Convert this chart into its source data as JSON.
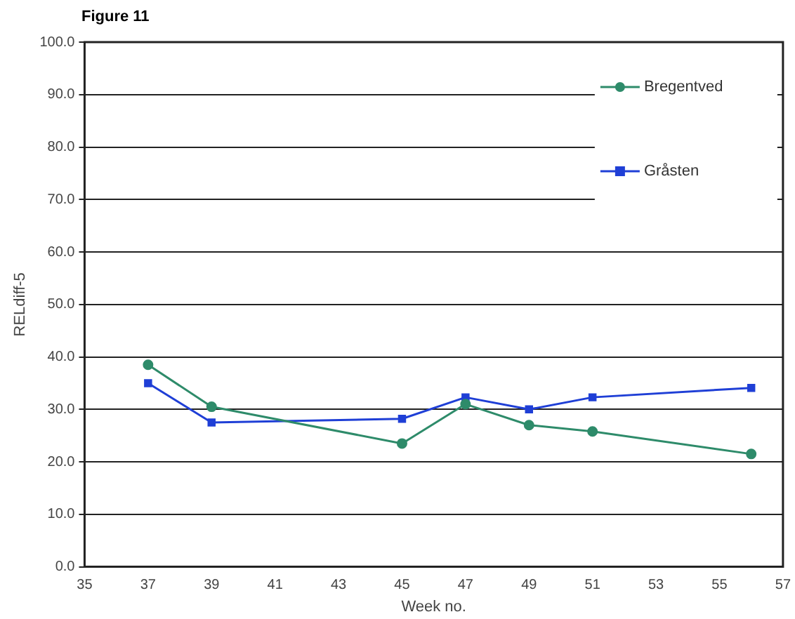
{
  "chart_data": {
    "type": "line",
    "title": "Figure 11",
    "xlabel": "Week no.",
    "ylabel": "RELdiff-5",
    "x": [
      37,
      39,
      45,
      47,
      49,
      51,
      56
    ],
    "series": [
      {
        "name": "Bregentved",
        "color": "#2e8b6a",
        "values": [
          38.5,
          30.5,
          23.5,
          31,
          27,
          25.8,
          21.5
        ],
        "marker": "circle"
      },
      {
        "name": "Gråsten",
        "color": "#1f3fd6",
        "values": [
          35,
          27.5,
          28.2,
          32.3,
          30,
          32.3,
          34.1
        ],
        "marker": "square"
      }
    ],
    "xlim": [
      35,
      57
    ],
    "xticks": [
      35,
      37,
      39,
      41,
      43,
      45,
      47,
      49,
      51,
      53,
      55,
      57
    ],
    "ylim": [
      0,
      100
    ],
    "yticks": [
      {
        "value": 0,
        "label": "0.0"
      },
      {
        "value": 10,
        "label": "10.0"
      },
      {
        "value": 20,
        "label": "20.0"
      },
      {
        "value": 30,
        "label": "30.0"
      },
      {
        "value": 40,
        "label": "40.0"
      },
      {
        "value": 50,
        "label": "50.0"
      },
      {
        "value": 60,
        "label": "60.0"
      },
      {
        "value": 70,
        "label": "70.0"
      },
      {
        "value": 80,
        "label": "80.0"
      },
      {
        "value": 90,
        "label": "90.0"
      },
      {
        "value": 100,
        "label": "100.0"
      }
    ],
    "grid": "y",
    "legend": "top right",
    "line_style": "solid"
  }
}
